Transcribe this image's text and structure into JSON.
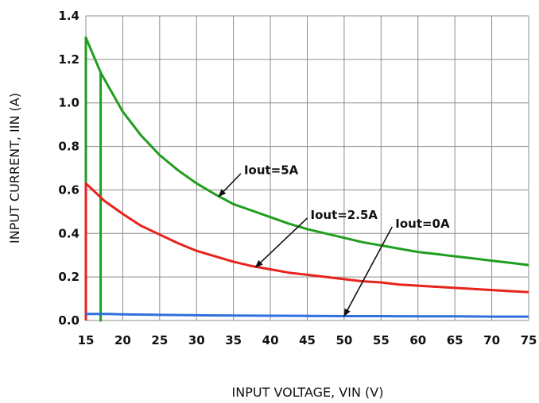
{
  "chart_data": {
    "type": "line",
    "xlabel": "INPUT VOLTAGE, VIN (V)",
    "ylabel": "INPUT CURRENT, IIN (A)",
    "xlim": [
      15,
      75
    ],
    "ylim": [
      0,
      1.4
    ],
    "xticks": [
      15,
      20,
      25,
      30,
      35,
      40,
      45,
      50,
      55,
      60,
      65,
      70,
      75
    ],
    "yticks": [
      "0.0",
      "0.2",
      "0.4",
      "0.6",
      "0.8",
      "1.0",
      "1.2",
      "1.4"
    ],
    "grid": true,
    "series": [
      {
        "name": "Iout=5A",
        "color": "#1f9e1f",
        "x": [
          15,
          15,
          16,
          17,
          17,
          17,
          18,
          20,
          22.5,
          25,
          27.5,
          30,
          32.5,
          35,
          37.5,
          40,
          42.5,
          45,
          47.5,
          50,
          52.5,
          55,
          57.5,
          60,
          62.5,
          65,
          67.5,
          70,
          72.5,
          75
        ],
        "y": [
          0.0,
          1.3,
          1.22,
          1.14,
          0.0,
          1.14,
          1.08,
          0.96,
          0.85,
          0.76,
          0.69,
          0.63,
          0.58,
          0.535,
          0.505,
          0.475,
          0.445,
          0.42,
          0.4,
          0.38,
          0.36,
          0.345,
          0.33,
          0.315,
          0.305,
          0.295,
          0.285,
          0.275,
          0.265,
          0.255
        ]
      },
      {
        "name": "Iout=2.5A",
        "color": "#e8231c",
        "x": [
          15,
          15,
          17.5,
          20,
          22.5,
          25,
          27.5,
          30,
          32.5,
          35,
          37.5,
          40,
          42.5,
          45,
          47.5,
          50,
          52.5,
          55,
          57.5,
          60,
          62.5,
          65,
          67.5,
          70,
          72.5,
          75
        ],
        "y": [
          0.0,
          0.63,
          0.55,
          0.49,
          0.435,
          0.395,
          0.355,
          0.32,
          0.295,
          0.27,
          0.25,
          0.235,
          0.22,
          0.21,
          0.2,
          0.19,
          0.18,
          0.175,
          0.165,
          0.16,
          0.155,
          0.15,
          0.145,
          0.14,
          0.135,
          0.13
        ]
      },
      {
        "name": "Iout=0A",
        "color": "#2f6fde",
        "x": [
          15,
          18,
          20,
          25,
          30,
          35,
          40,
          45,
          50,
          55,
          60,
          65,
          70,
          75
        ],
        "y": [
          0.03,
          0.03,
          0.028,
          0.026,
          0.024,
          0.023,
          0.022,
          0.021,
          0.02,
          0.02,
          0.019,
          0.019,
          0.018,
          0.018
        ]
      }
    ],
    "annotations": [
      {
        "text": "Iout=5A",
        "series": "Iout=5A",
        "point_x": 33,
        "point_y": 0.57,
        "label_x": 36,
        "label_y": 0.69
      },
      {
        "text": "Iout=2.5A",
        "series": "Iout=2.5A",
        "point_x": 38,
        "point_y": 0.245,
        "label_x": 45,
        "label_y": 0.485
      },
      {
        "text": "Iout=0A",
        "series": "Iout=0A",
        "point_x": 50,
        "point_y": 0.02,
        "label_x": 56.5,
        "label_y": 0.445
      }
    ]
  }
}
